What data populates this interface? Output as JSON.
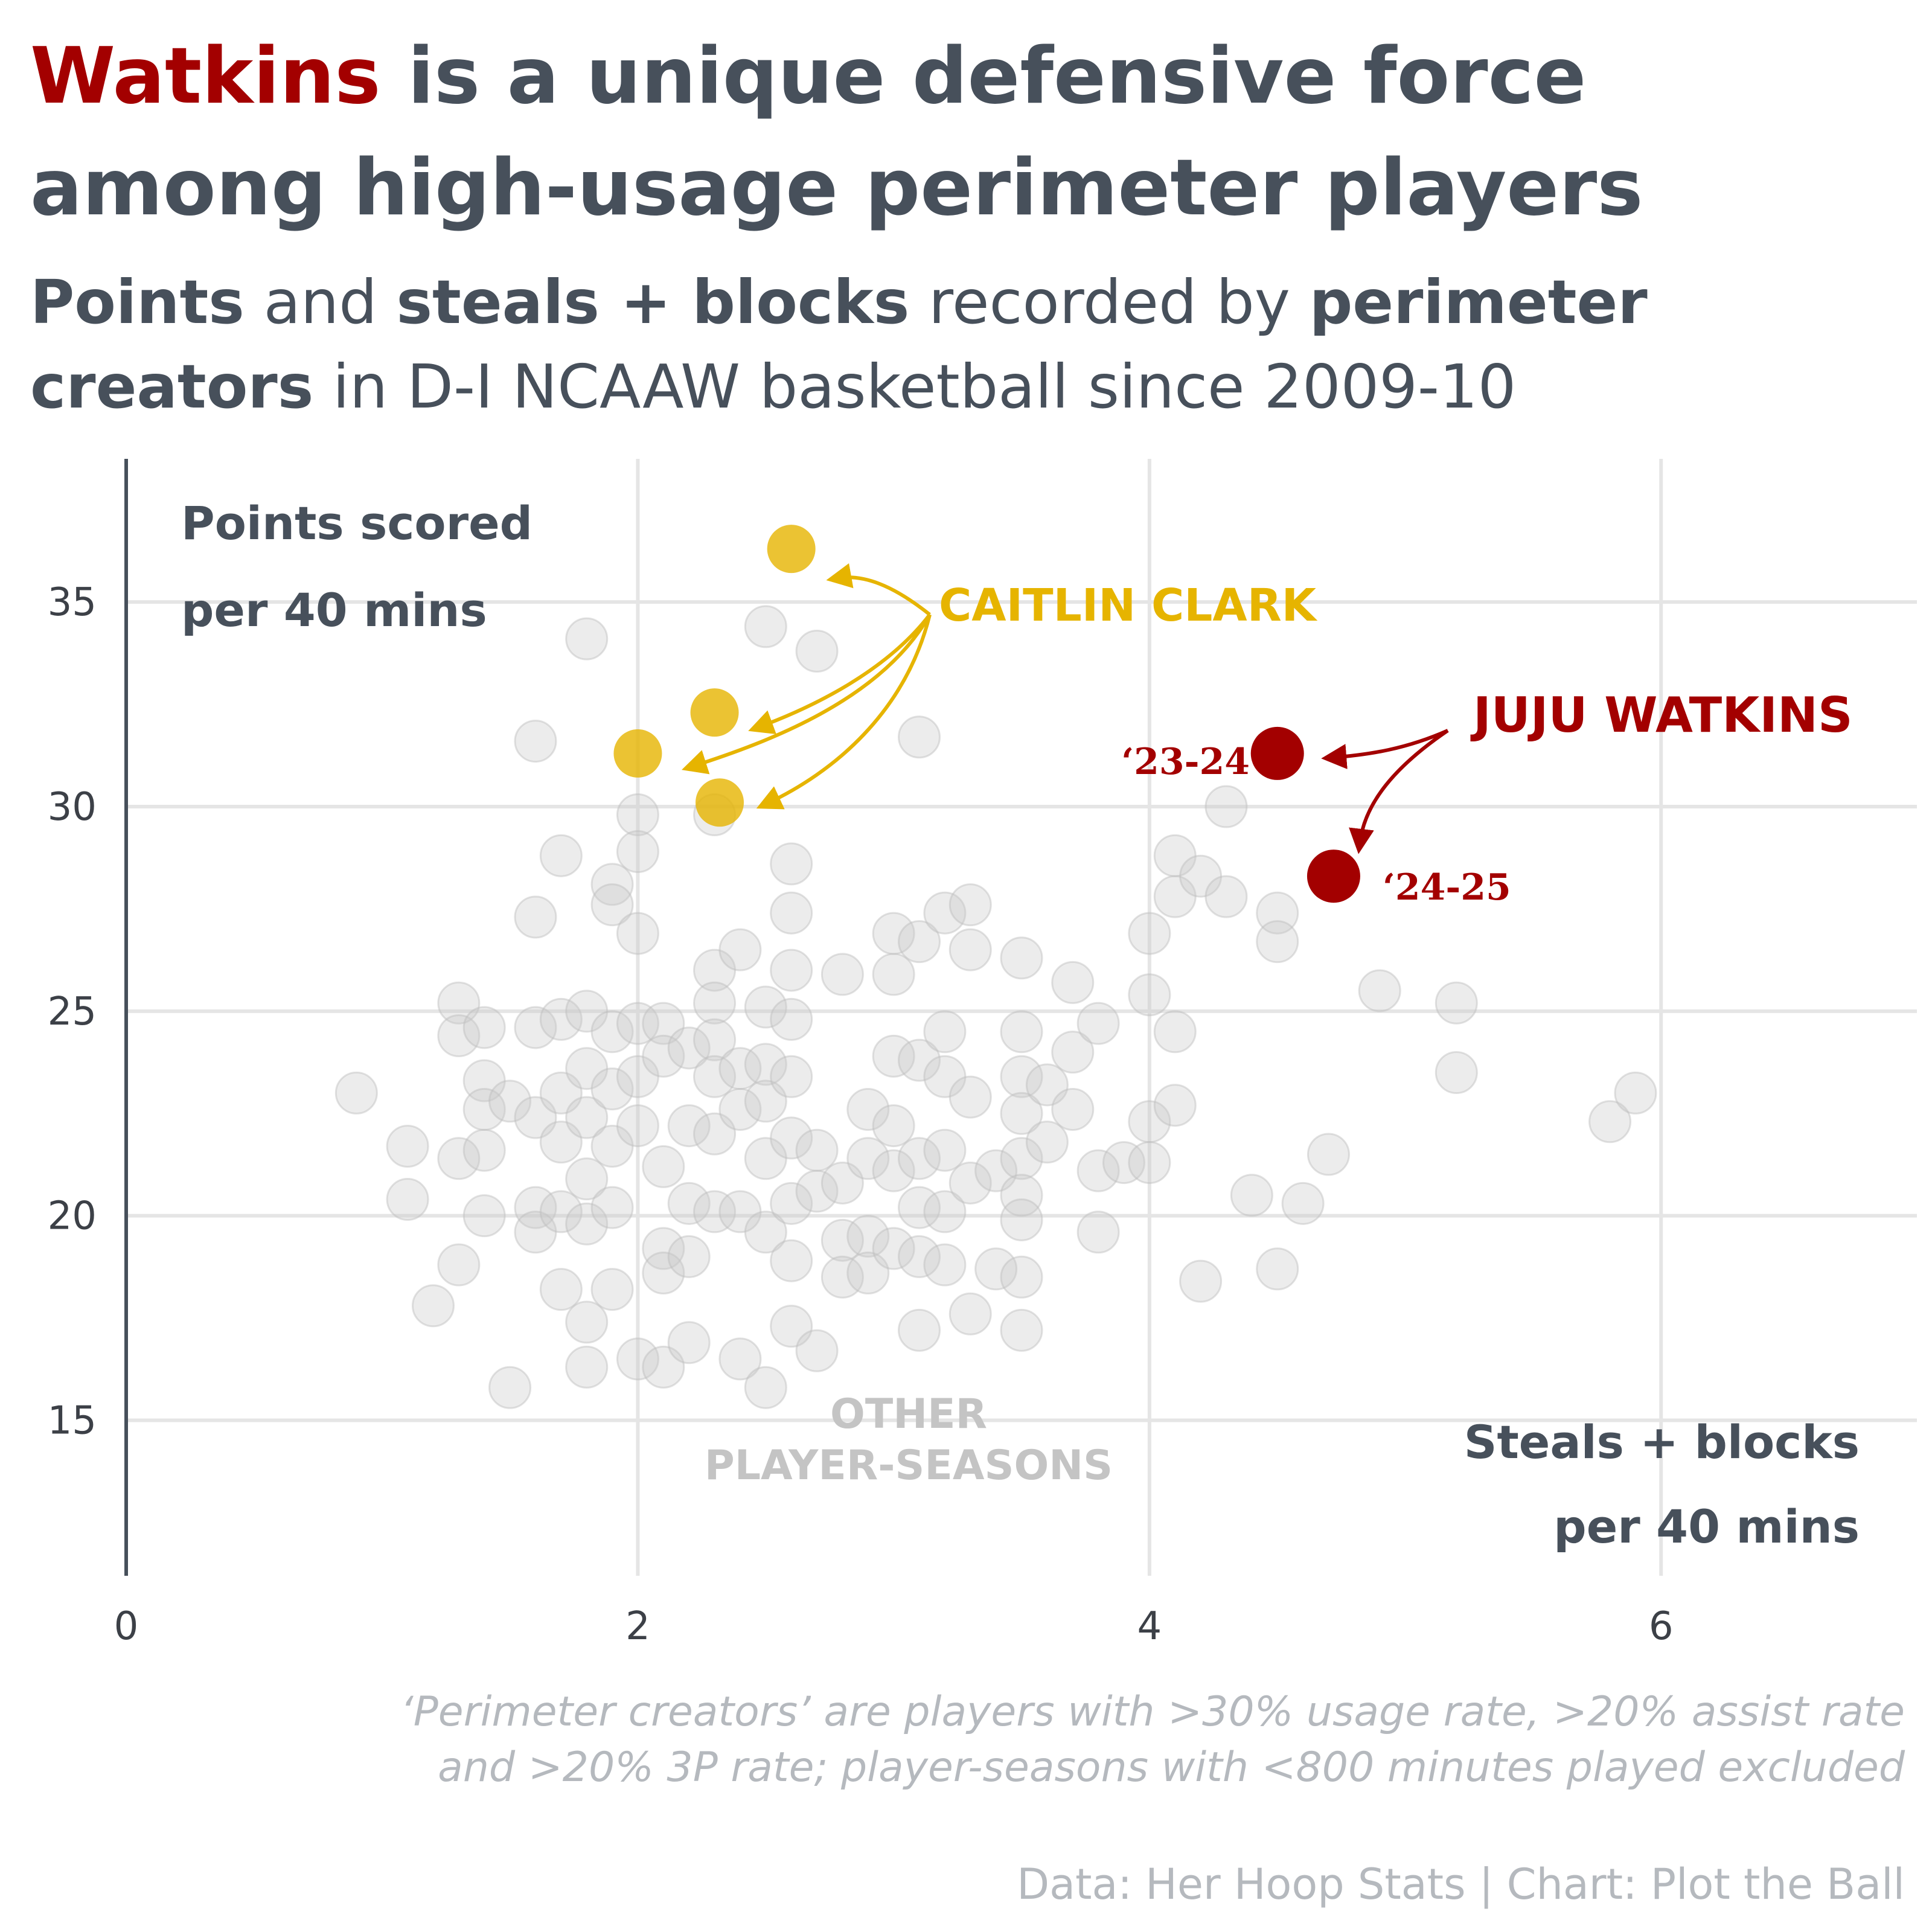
{
  "title": {
    "accent_word": "Watkins",
    "line1_rest": " is a unique defensive force",
    "line2": "among high-usage perimeter players"
  },
  "subtitle": {
    "line1": [
      {
        "text": "Points",
        "bold": true
      },
      {
        "text": " and ",
        "bold": false
      },
      {
        "text": "steals + blocks",
        "bold": true
      },
      {
        "text": " recorded by ",
        "bold": false
      },
      {
        "text": "perimeter",
        "bold": true
      }
    ],
    "line2": [
      {
        "text": "creators",
        "bold": true
      },
      {
        "text": " in D-I NCAAW basketball since 2009-10",
        "bold": false
      }
    ]
  },
  "axes": {
    "y_title_line1": "Points scored",
    "y_title_line2": "per 40 mins",
    "x_title_line1": "Steals + blocks",
    "x_title_line2": "per 40 mins"
  },
  "annotations": {
    "clark": "CAITLIN CLARK",
    "watkins": "JUJU WATKINS",
    "watkins_season_1": "‘23-24",
    "watkins_season_2": "‘24-25",
    "others_line1": "OTHER",
    "others_line2": "PLAYER-SEASONS"
  },
  "note": {
    "line1": "‘Perimeter creators’ are players with >30% usage rate, >20% assist rate",
    "line2": "and >20% 3P rate; player-seasons with <800 minutes played excluded"
  },
  "source": "Data: Her Hoop Stats | Chart: Plot the Ball",
  "colors": {
    "watkins": "#a30000",
    "clark": "#e6b400",
    "others": "#c9c9c9",
    "text": "#47505b"
  },
  "chart_data": {
    "type": "scatter",
    "title": "Watkins is a unique defensive force among high-usage perimeter players",
    "xlabel": "Steals + blocks per 40 mins",
    "ylabel": "Points scored per 40 mins",
    "xlim": [
      0,
      7
    ],
    "ylim": [
      11.2,
      38.5
    ],
    "x_ticks": [
      0,
      2,
      4,
      6
    ],
    "y_ticks": [
      15,
      20,
      25,
      30,
      35
    ],
    "grid": true,
    "series": [
      {
        "name": "JUJU WATKINS",
        "points": [
          {
            "x": 4.5,
            "y": 31.3,
            "label": "‘23-24"
          },
          {
            "x": 4.72,
            "y": 28.3,
            "label": "‘24-25"
          }
        ]
      },
      {
        "name": "CAITLIN CLARK",
        "points": [
          {
            "x": 2.6,
            "y": 36.3
          },
          {
            "x": 2.3,
            "y": 32.3
          },
          {
            "x": 2.0,
            "y": 31.3
          },
          {
            "x": 2.32,
            "y": 30.1
          }
        ]
      },
      {
        "name": "OTHER PLAYER-SEASONS",
        "points": [
          {
            "x": 0.9,
            "y": 23.0
          },
          {
            "x": 1.1,
            "y": 21.7
          },
          {
            "x": 1.1,
            "y": 20.4
          },
          {
            "x": 1.2,
            "y": 17.8
          },
          {
            "x": 1.3,
            "y": 25.2
          },
          {
            "x": 1.3,
            "y": 24.4
          },
          {
            "x": 1.3,
            "y": 21.4
          },
          {
            "x": 1.3,
            "y": 18.8
          },
          {
            "x": 1.4,
            "y": 24.6
          },
          {
            "x": 1.4,
            "y": 23.3
          },
          {
            "x": 1.4,
            "y": 22.6
          },
          {
            "x": 1.4,
            "y": 21.6
          },
          {
            "x": 1.4,
            "y": 20.0
          },
          {
            "x": 1.5,
            "y": 22.8
          },
          {
            "x": 1.5,
            "y": 15.8
          },
          {
            "x": 1.6,
            "y": 31.6
          },
          {
            "x": 1.6,
            "y": 27.3
          },
          {
            "x": 1.6,
            "y": 24.6
          },
          {
            "x": 1.6,
            "y": 22.4
          },
          {
            "x": 1.6,
            "y": 20.2
          },
          {
            "x": 1.6,
            "y": 19.6
          },
          {
            "x": 1.7,
            "y": 28.8
          },
          {
            "x": 1.7,
            "y": 24.8
          },
          {
            "x": 1.7,
            "y": 23.0
          },
          {
            "x": 1.7,
            "y": 21.8
          },
          {
            "x": 1.7,
            "y": 20.1
          },
          {
            "x": 1.7,
            "y": 18.2
          },
          {
            "x": 1.8,
            "y": 34.1
          },
          {
            "x": 1.8,
            "y": 25.0
          },
          {
            "x": 1.8,
            "y": 23.6
          },
          {
            "x": 1.8,
            "y": 22.4
          },
          {
            "x": 1.8,
            "y": 20.9
          },
          {
            "x": 1.8,
            "y": 19.8
          },
          {
            "x": 1.8,
            "y": 17.4
          },
          {
            "x": 1.8,
            "y": 16.3
          },
          {
            "x": 1.9,
            "y": 28.1
          },
          {
            "x": 1.9,
            "y": 27.6
          },
          {
            "x": 1.9,
            "y": 24.5
          },
          {
            "x": 1.9,
            "y": 23.1
          },
          {
            "x": 1.9,
            "y": 21.7
          },
          {
            "x": 1.9,
            "y": 20.2
          },
          {
            "x": 1.9,
            "y": 18.2
          },
          {
            "x": 2.0,
            "y": 29.8
          },
          {
            "x": 2.0,
            "y": 28.9
          },
          {
            "x": 2.0,
            "y": 26.9
          },
          {
            "x": 2.0,
            "y": 24.7
          },
          {
            "x": 2.0,
            "y": 23.4
          },
          {
            "x": 2.0,
            "y": 22.2
          },
          {
            "x": 2.0,
            "y": 16.5
          },
          {
            "x": 2.1,
            "y": 24.7
          },
          {
            "x": 2.1,
            "y": 23.9
          },
          {
            "x": 2.1,
            "y": 21.2
          },
          {
            "x": 2.1,
            "y": 19.2
          },
          {
            "x": 2.1,
            "y": 18.6
          },
          {
            "x": 2.1,
            "y": 16.3
          },
          {
            "x": 2.2,
            "y": 24.1
          },
          {
            "x": 2.2,
            "y": 22.2
          },
          {
            "x": 2.2,
            "y": 20.3
          },
          {
            "x": 2.2,
            "y": 19.0
          },
          {
            "x": 2.2,
            "y": 16.9
          },
          {
            "x": 2.3,
            "y": 26.0
          },
          {
            "x": 2.3,
            "y": 25.2
          },
          {
            "x": 2.3,
            "y": 24.3
          },
          {
            "x": 2.3,
            "y": 23.4
          },
          {
            "x": 2.3,
            "y": 22.0
          },
          {
            "x": 2.3,
            "y": 20.1
          },
          {
            "x": 2.3,
            "y": 29.8
          },
          {
            "x": 2.4,
            "y": 26.5
          },
          {
            "x": 2.4,
            "y": 23.6
          },
          {
            "x": 2.4,
            "y": 22.6
          },
          {
            "x": 2.4,
            "y": 20.1
          },
          {
            "x": 2.4,
            "y": 16.5
          },
          {
            "x": 2.5,
            "y": 25.1
          },
          {
            "x": 2.5,
            "y": 23.7
          },
          {
            "x": 2.5,
            "y": 22.8
          },
          {
            "x": 2.5,
            "y": 21.4
          },
          {
            "x": 2.5,
            "y": 19.6
          },
          {
            "x": 2.5,
            "y": 15.8
          },
          {
            "x": 2.5,
            "y": 34.4
          },
          {
            "x": 2.6,
            "y": 28.6
          },
          {
            "x": 2.6,
            "y": 27.4
          },
          {
            "x": 2.6,
            "y": 26.0
          },
          {
            "x": 2.6,
            "y": 24.8
          },
          {
            "x": 2.6,
            "y": 23.4
          },
          {
            "x": 2.6,
            "y": 21.9
          },
          {
            "x": 2.6,
            "y": 20.3
          },
          {
            "x": 2.6,
            "y": 18.9
          },
          {
            "x": 2.6,
            "y": 17.3
          },
          {
            "x": 2.7,
            "y": 33.8
          },
          {
            "x": 2.7,
            "y": 21.6
          },
          {
            "x": 2.7,
            "y": 20.6
          },
          {
            "x": 2.7,
            "y": 16.7
          },
          {
            "x": 2.8,
            "y": 25.9
          },
          {
            "x": 2.8,
            "y": 20.8
          },
          {
            "x": 2.8,
            "y": 19.4
          },
          {
            "x": 2.8,
            "y": 18.5
          },
          {
            "x": 2.9,
            "y": 22.6
          },
          {
            "x": 2.9,
            "y": 21.4
          },
          {
            "x": 2.9,
            "y": 19.5
          },
          {
            "x": 2.9,
            "y": 18.6
          },
          {
            "x": 3.0,
            "y": 26.9
          },
          {
            "x": 3.0,
            "y": 25.9
          },
          {
            "x": 3.0,
            "y": 23.9
          },
          {
            "x": 3.0,
            "y": 22.2
          },
          {
            "x": 3.0,
            "y": 21.1
          },
          {
            "x": 3.0,
            "y": 19.2
          },
          {
            "x": 3.1,
            "y": 31.7
          },
          {
            "x": 3.1,
            "y": 26.7
          },
          {
            "x": 3.1,
            "y": 23.8
          },
          {
            "x": 3.1,
            "y": 21.4
          },
          {
            "x": 3.1,
            "y": 20.2
          },
          {
            "x": 3.1,
            "y": 19.0
          },
          {
            "x": 3.1,
            "y": 17.2
          },
          {
            "x": 3.2,
            "y": 27.4
          },
          {
            "x": 3.2,
            "y": 24.5
          },
          {
            "x": 3.2,
            "y": 23.4
          },
          {
            "x": 3.2,
            "y": 21.6
          },
          {
            "x": 3.2,
            "y": 20.1
          },
          {
            "x": 3.2,
            "y": 18.8
          },
          {
            "x": 3.3,
            "y": 27.6
          },
          {
            "x": 3.3,
            "y": 26.5
          },
          {
            "x": 3.3,
            "y": 22.9
          },
          {
            "x": 3.3,
            "y": 20.8
          },
          {
            "x": 3.3,
            "y": 17.6
          },
          {
            "x": 3.4,
            "y": 21.1
          },
          {
            "x": 3.4,
            "y": 18.7
          },
          {
            "x": 3.5,
            "y": 26.3
          },
          {
            "x": 3.5,
            "y": 24.5
          },
          {
            "x": 3.5,
            "y": 23.4
          },
          {
            "x": 3.5,
            "y": 22.5
          },
          {
            "x": 3.5,
            "y": 21.4
          },
          {
            "x": 3.5,
            "y": 20.5
          },
          {
            "x": 3.5,
            "y": 19.9
          },
          {
            "x": 3.5,
            "y": 18.5
          },
          {
            "x": 3.5,
            "y": 17.2
          },
          {
            "x": 3.6,
            "y": 23.2
          },
          {
            "x": 3.6,
            "y": 21.8
          },
          {
            "x": 3.7,
            "y": 25.7
          },
          {
            "x": 3.7,
            "y": 24.0
          },
          {
            "x": 3.7,
            "y": 22.6
          },
          {
            "x": 3.8,
            "y": 24.7
          },
          {
            "x": 3.8,
            "y": 21.1
          },
          {
            "x": 3.8,
            "y": 19.6
          },
          {
            "x": 3.9,
            "y": 21.3
          },
          {
            "x": 4.0,
            "y": 26.9
          },
          {
            "x": 4.0,
            "y": 25.4
          },
          {
            "x": 4.0,
            "y": 22.3
          },
          {
            "x": 4.0,
            "y": 21.3
          },
          {
            "x": 4.1,
            "y": 28.8
          },
          {
            "x": 4.1,
            "y": 27.8
          },
          {
            "x": 4.1,
            "y": 24.5
          },
          {
            "x": 4.1,
            "y": 22.7
          },
          {
            "x": 4.2,
            "y": 28.3
          },
          {
            "x": 4.2,
            "y": 18.4
          },
          {
            "x": 4.3,
            "y": 27.8
          },
          {
            "x": 4.3,
            "y": 30.0
          },
          {
            "x": 4.4,
            "y": 20.5
          },
          {
            "x": 4.5,
            "y": 27.4
          },
          {
            "x": 4.5,
            "y": 26.7
          },
          {
            "x": 4.5,
            "y": 18.7
          },
          {
            "x": 4.6,
            "y": 20.3
          },
          {
            "x": 4.7,
            "y": 21.5
          },
          {
            "x": 4.9,
            "y": 25.5
          },
          {
            "x": 5.2,
            "y": 25.2
          },
          {
            "x": 5.2,
            "y": 23.5
          },
          {
            "x": 5.8,
            "y": 22.3
          },
          {
            "x": 5.9,
            "y": 23.0
          }
        ]
      }
    ]
  }
}
